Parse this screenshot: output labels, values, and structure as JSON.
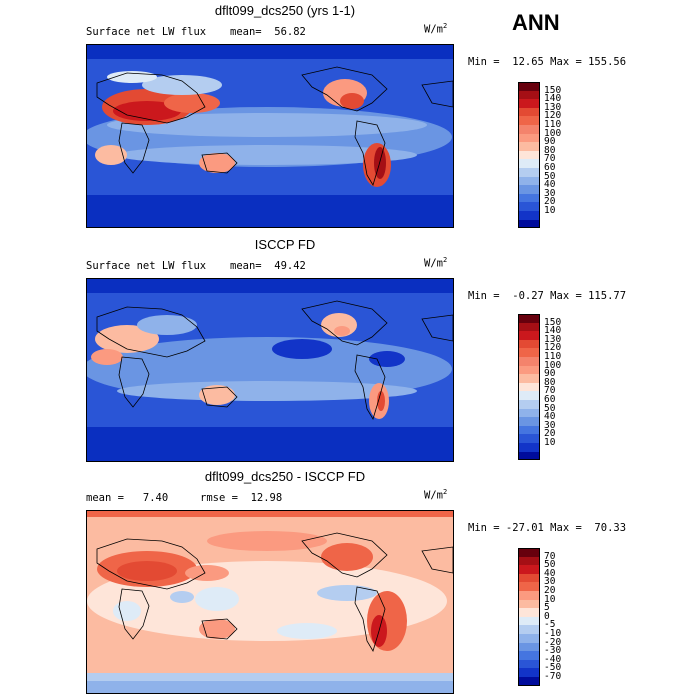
{
  "season": "ANN",
  "units": {
    "base": "W/m",
    "exp": "2"
  },
  "panels": [
    {
      "title": "dflt099_dcs250 (yrs 1-1)",
      "variable": "Surface net LW flux",
      "stat": "mean=  56.82",
      "minmax": "Min =  12.65 Max = 155.56",
      "colorbar": {
        "labels": [
          "150",
          "140",
          "130",
          "120",
          "110",
          "100",
          "90",
          "80",
          "70",
          "60",
          "50",
          "40",
          "30",
          "20",
          "10"
        ],
        "colors": [
          "#67000d",
          "#a50f15",
          "#cb181d",
          "#e34a33",
          "#ef6548",
          "#f4836c",
          "#fb9a80",
          "#fcbba1",
          "#fee5d9",
          "#deebf7",
          "#b4cdf0",
          "#8fb2ea",
          "#6a95e3",
          "#4575e0",
          "#2a55d6",
          "#1234c8",
          "#000c9c"
        ]
      }
    },
    {
      "title": "ISCCP FD",
      "variable": "Surface net LW flux",
      "stat": "mean=  49.42",
      "minmax": "Min =  -0.27 Max = 115.77",
      "colorbar": {
        "labels": [
          "150",
          "140",
          "130",
          "120",
          "110",
          "100",
          "90",
          "80",
          "70",
          "60",
          "50",
          "40",
          "30",
          "20",
          "10"
        ],
        "colors": [
          "#67000d",
          "#a50f15",
          "#cb181d",
          "#e34a33",
          "#ef6548",
          "#f4836c",
          "#fb9a80",
          "#fcbba1",
          "#fee5d9",
          "#deebf7",
          "#b4cdf0",
          "#8fb2ea",
          "#6a95e3",
          "#4575e0",
          "#2a55d6",
          "#1234c8",
          "#000c9c"
        ]
      }
    },
    {
      "title": "dflt099_dcs250 - ISCCP FD",
      "stat": "mean =   7.40",
      "stat2": "rmse =  12.98",
      "minmax": "Min = -27.01 Max =  70.33",
      "colorbar": {
        "labels": [
          "70",
          "50",
          "40",
          "30",
          "20",
          "10",
          "5",
          "0",
          "-5",
          "-10",
          "-20",
          "-30",
          "-40",
          "-50",
          "-70"
        ],
        "colors": [
          "#67000d",
          "#a50f15",
          "#cb181d",
          "#e34a33",
          "#ef6548",
          "#fb9a80",
          "#fcbba1",
          "#fee5d9",
          "#deebf7",
          "#b4cdf0",
          "#8fb2ea",
          "#6a95e3",
          "#4575e0",
          "#2a55d6",
          "#1234c8",
          "#000c9c"
        ]
      }
    }
  ]
}
